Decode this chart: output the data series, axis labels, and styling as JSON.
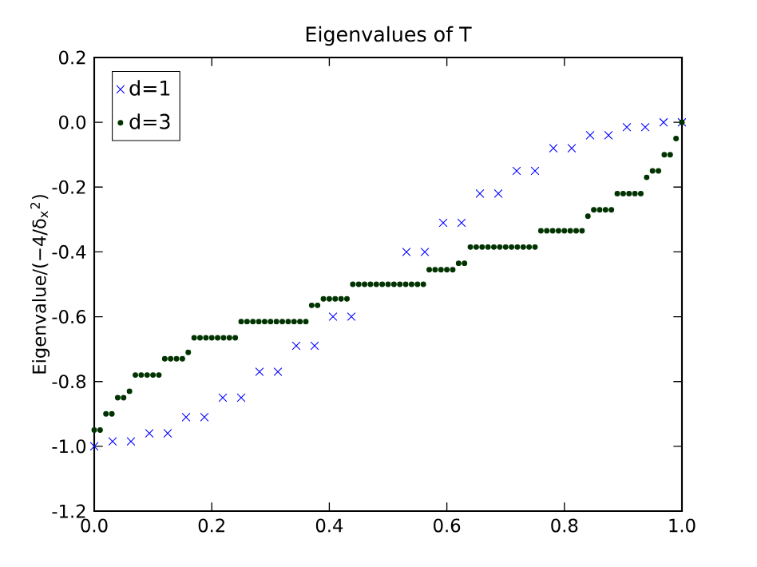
{
  "chart_data": {
    "type": "scatter",
    "title": "Eigenvalues of T",
    "ylabel": "Eigenvalue/(−4/δ$_{x}$$^{2}$)",
    "legend": "top left",
    "grid": false,
    "xlim": [
      0,
      1
    ],
    "ylim": [
      -1.2,
      0.2
    ],
    "xticks": [
      {
        "value": 0,
        "label": "0.0"
      },
      {
        "value": 0.2,
        "label": "0.2"
      },
      {
        "value": 0.4,
        "label": "0.4"
      },
      {
        "value": 0.6,
        "label": "0.6"
      },
      {
        "value": 0.8,
        "label": "0.8"
      },
      {
        "value": 1,
        "label": "1.0"
      }
    ],
    "yticks": [
      {
        "value": -1.2,
        "label": "-1.2"
      },
      {
        "value": -1,
        "label": "-1.0"
      },
      {
        "value": -0.8,
        "label": "-0.8"
      },
      {
        "value": -0.6,
        "label": "-0.6"
      },
      {
        "value": -0.4,
        "label": "-0.4"
      },
      {
        "value": -0.2,
        "label": "-0.2"
      },
      {
        "value": 0,
        "label": "0.0"
      },
      {
        "value": 0.2,
        "label": "0.2"
      }
    ],
    "series": [
      {
        "name": "d=1",
        "color": "#0000ff",
        "marker": "cross",
        "x": [
          0,
          0.03125,
          0.0625,
          0.09375,
          0.125,
          0.15625,
          0.1875,
          0.21875,
          0.25,
          0.28125,
          0.3125,
          0.34375,
          0.375,
          0.40625,
          0.4375,
          0.46875,
          0.5,
          0.53125,
          0.5625,
          0.59375,
          0.625,
          0.65625,
          0.6875,
          0.71875,
          0.75,
          0.78125,
          0.8125,
          0.84375,
          0.875,
          0.90625,
          0.9375,
          0.96875,
          1
        ],
        "values": [
          -1.0,
          -0.985,
          -0.985,
          -0.96,
          -0.96,
          -0.91,
          -0.91,
          -0.85,
          -0.85,
          -0.77,
          -0.77,
          -0.69,
          -0.69,
          -0.6,
          -0.6,
          null,
          null,
          -0.4,
          -0.4,
          -0.31,
          -0.31,
          -0.22,
          -0.22,
          -0.15,
          -0.15,
          -0.08,
          -0.08,
          -0.04,
          -0.04,
          -0.015,
          -0.015,
          0,
          0
        ]
      },
      {
        "name": "d=3",
        "color": "#003300",
        "marker": "circle",
        "x": [
          0,
          0.01,
          0.02,
          0.03,
          0.04,
          0.05,
          0.06,
          0.07,
          0.08,
          0.09,
          0.1,
          0.11,
          0.12,
          0.13,
          0.14,
          0.15,
          0.16,
          0.17,
          0.18,
          0.19,
          0.2,
          0.21,
          0.22,
          0.23,
          0.24,
          0.25,
          0.26,
          0.27,
          0.28,
          0.29,
          0.3,
          0.31,
          0.32,
          0.33,
          0.34,
          0.35,
          0.36,
          0.37,
          0.38,
          0.39,
          0.4,
          0.41,
          0.42,
          0.43,
          0.44,
          0.45,
          0.46,
          0.47,
          0.48,
          0.49,
          0.5,
          0.51,
          0.52,
          0.53,
          0.54,
          0.55,
          0.56,
          0.57,
          0.58,
          0.59,
          0.6,
          0.61,
          0.62,
          0.63,
          0.64,
          0.65,
          0.66,
          0.67,
          0.68,
          0.69,
          0.7,
          0.71,
          0.72,
          0.73,
          0.74,
          0.75,
          0.76,
          0.77,
          0.78,
          0.79,
          0.8,
          0.81,
          0.82,
          0.83,
          0.84,
          0.85,
          0.86,
          0.87,
          0.88,
          0.89,
          0.9,
          0.91,
          0.92,
          0.93,
          0.94,
          0.95,
          0.96,
          0.97,
          0.98,
          0.99,
          1
        ],
        "values": [
          -0.95,
          -0.95,
          -0.9,
          -0.9,
          -0.85,
          -0.85,
          -0.83,
          -0.78,
          -0.78,
          -0.78,
          -0.78,
          -0.78,
          -0.73,
          -0.73,
          -0.73,
          -0.73,
          -0.71,
          -0.665,
          -0.665,
          -0.665,
          -0.665,
          -0.665,
          -0.665,
          -0.665,
          -0.665,
          -0.615,
          -0.615,
          -0.615,
          -0.615,
          -0.615,
          -0.615,
          -0.615,
          -0.615,
          -0.615,
          -0.615,
          -0.615,
          -0.615,
          -0.565,
          -0.565,
          -0.545,
          -0.545,
          -0.545,
          -0.545,
          -0.545,
          -0.5,
          -0.5,
          -0.5,
          -0.5,
          -0.5,
          -0.5,
          -0.5,
          -0.5,
          -0.5,
          -0.5,
          -0.5,
          -0.5,
          -0.5,
          -0.455,
          -0.455,
          -0.455,
          -0.455,
          -0.455,
          -0.435,
          -0.435,
          -0.385,
          -0.385,
          -0.385,
          -0.385,
          -0.385,
          -0.385,
          -0.385,
          -0.385,
          -0.385,
          -0.385,
          -0.385,
          -0.385,
          -0.335,
          -0.335,
          -0.335,
          -0.335,
          -0.335,
          -0.335,
          -0.335,
          -0.335,
          -0.29,
          -0.27,
          -0.27,
          -0.27,
          -0.27,
          -0.22,
          -0.22,
          -0.22,
          -0.22,
          -0.22,
          -0.17,
          -0.15,
          -0.15,
          -0.1,
          -0.1,
          -0.05,
          0
        ]
      }
    ]
  }
}
